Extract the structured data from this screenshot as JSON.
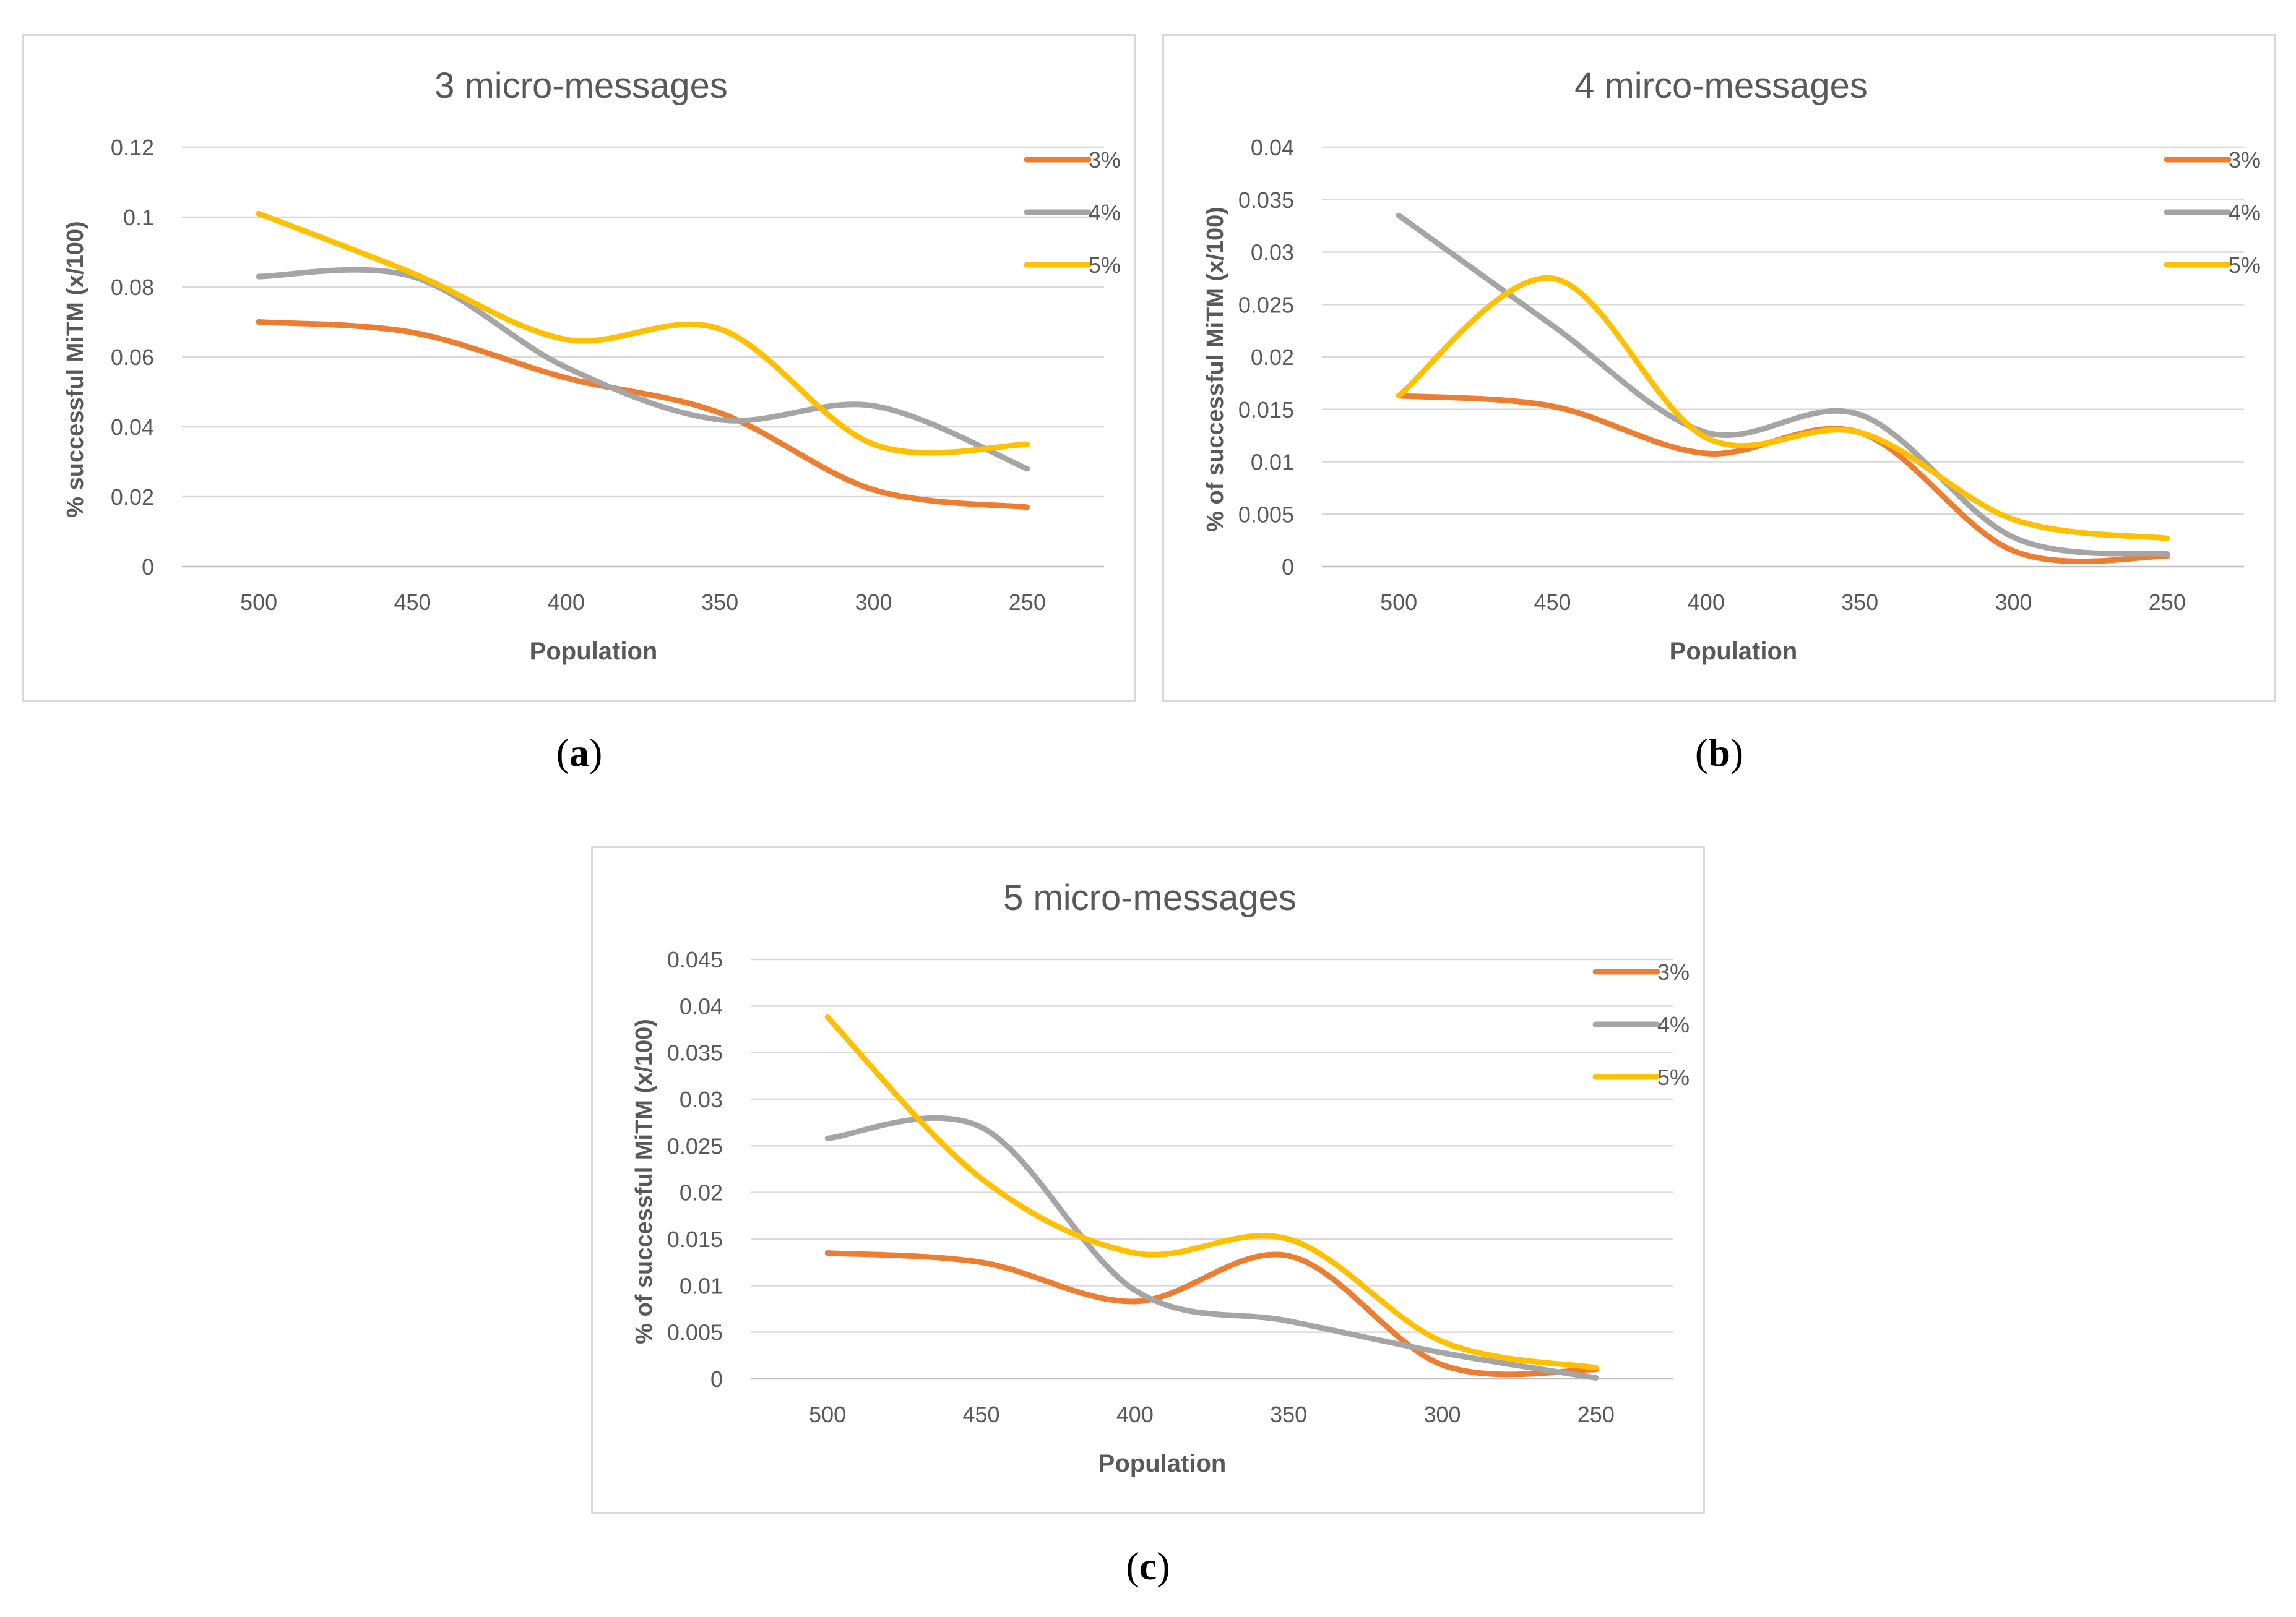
{
  "chart_data": [
    {
      "type": "line",
      "title": "3 micro-messages",
      "xlabel": "Population",
      "ylabel": "% successful  MiTM  (x/100)",
      "categories": [
        "500",
        "450",
        "400",
        "350",
        "300",
        "250"
      ],
      "ylim": [
        0,
        0.12
      ],
      "yticks": [
        0,
        0.02,
        0.04,
        0.06,
        0.08,
        0.1,
        0.12
      ],
      "ytick_labels": [
        "0",
        "0.02",
        "0.04",
        "0.06",
        "0.08",
        "0.1",
        "0.12"
      ],
      "grid": true,
      "legend": "top-right",
      "series": [
        {
          "name": "3%",
          "color": "#ed7d31",
          "values": [
            0.07,
            0.067,
            0.054,
            0.044,
            0.022,
            0.017
          ]
        },
        {
          "name": "4%",
          "color": "#a5a5a5",
          "values": [
            0.083,
            0.083,
            0.057,
            0.042,
            0.046,
            0.028
          ]
        },
        {
          "name": "5%",
          "color": "#ffc000",
          "values": [
            0.101,
            0.084,
            0.065,
            0.068,
            0.035,
            0.035
          ]
        }
      ],
      "caption": "a"
    },
    {
      "type": "line",
      "title": "4 mirco-messages",
      "xlabel": "Population",
      "ylabel": "% of successful  MiTM  (x/100)",
      "categories": [
        "500",
        "450",
        "400",
        "350",
        "300",
        "250"
      ],
      "ylim": [
        0,
        0.04
      ],
      "yticks": [
        0,
        0.005,
        0.01,
        0.015,
        0.02,
        0.025,
        0.03,
        0.035,
        0.04
      ],
      "ytick_labels": [
        "0",
        "0.005",
        "0.01",
        "0.015",
        "0.02",
        "0.025",
        "0.03",
        "0.035",
        "0.04"
      ],
      "grid": true,
      "legend": "top-right",
      "series": [
        {
          "name": "3%",
          "color": "#ed7d31",
          "values": [
            0.0163,
            0.0153,
            0.0108,
            0.0128,
            0.0015,
            0.001
          ]
        },
        {
          "name": "4%",
          "color": "#a5a5a5",
          "values": [
            0.0335,
            0.023,
            0.0128,
            0.0145,
            0.0028,
            0.0012
          ]
        },
        {
          "name": "5%",
          "color": "#ffc000",
          "values": [
            0.0163,
            0.0275,
            0.0123,
            0.0128,
            0.0045,
            0.0027
          ]
        }
      ],
      "caption": "b"
    },
    {
      "type": "line",
      "title": "5 micro-messages",
      "xlabel": "Population",
      "ylabel": "% of successful  MiTM  (x/100)",
      "categories": [
        "500",
        "450",
        "400",
        "350",
        "300",
        "250"
      ],
      "ylim": [
        0,
        0.045
      ],
      "yticks": [
        0,
        0.005,
        0.01,
        0.015,
        0.02,
        0.025,
        0.03,
        0.035,
        0.04,
        0.045
      ],
      "ytick_labels": [
        "0",
        "0.005",
        "0.01",
        "0.015",
        "0.02",
        "0.025",
        "0.03",
        "0.035",
        "0.04",
        "0.045"
      ],
      "grid": true,
      "legend": "top-right",
      "series": [
        {
          "name": "3%",
          "color": "#ed7d31",
          "values": [
            0.0135,
            0.0125,
            0.0083,
            0.0132,
            0.0015,
            0.001
          ]
        },
        {
          "name": "4%",
          "color": "#a5a5a5",
          "values": [
            0.0258,
            0.027,
            0.0095,
            0.0062,
            0.0028,
            0.0001
          ]
        },
        {
          "name": "5%",
          "color": "#ffc000",
          "values": [
            0.0388,
            0.0215,
            0.0135,
            0.015,
            0.004,
            0.0012
          ]
        }
      ],
      "caption": "c"
    }
  ]
}
